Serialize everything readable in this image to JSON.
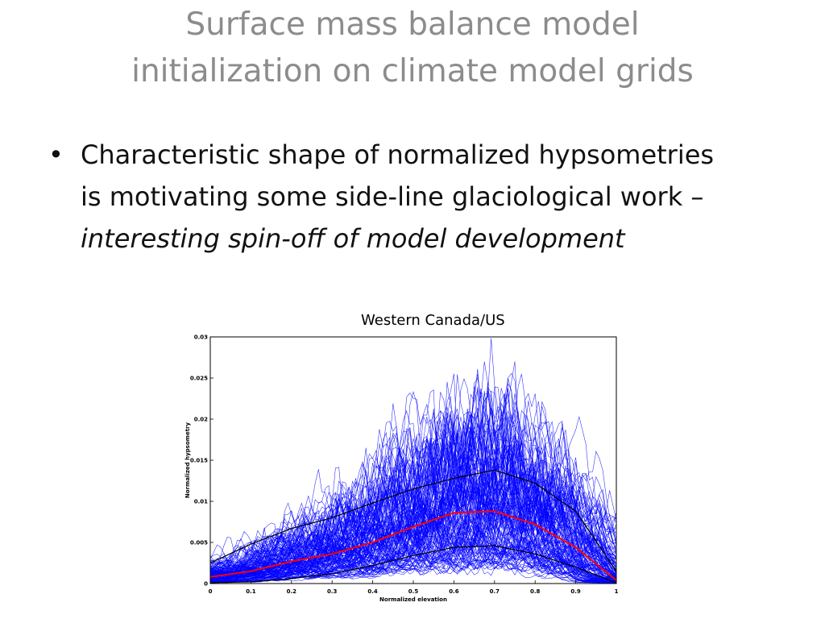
{
  "title": {
    "line1": "Surface mass balance model",
    "line2": "initialization on climate model grids"
  },
  "bullet": {
    "marker": "•",
    "text_plain": "Characteristic shape of normalized hypsometries is motivating some side-line glaciological work – ",
    "text_italic": "interesting spin-off of model development"
  },
  "chart_data": {
    "type": "line",
    "title": "Western Canada/US",
    "xlabel": "Normalized elevation",
    "ylabel": "Normalized hypsometry",
    "xlim": [
      0,
      1
    ],
    "ylim": [
      0,
      0.03
    ],
    "xticks": [
      0,
      0.1,
      0.2,
      0.3,
      0.4,
      0.5,
      0.6,
      0.7,
      0.8,
      0.9,
      1
    ],
    "xtick_labels": [
      "0",
      "0.1",
      "0.2",
      "0.3",
      "0.4",
      "0.5",
      "0.6",
      "0.7",
      "0.8",
      "0.9",
      "1"
    ],
    "yticks": [
      0,
      0.005,
      0.01,
      0.015,
      0.02,
      0.025,
      0.03
    ],
    "ytick_labels": [
      "0",
      "0.005",
      "0.01",
      "0.015",
      "0.02",
      "0.025",
      "0.03"
    ],
    "grid": false,
    "legend": "none",
    "x": [
      0,
      0.1,
      0.2,
      0.3,
      0.4,
      0.5,
      0.6,
      0.7,
      0.8,
      0.9,
      1
    ],
    "series": [
      {
        "values": [
          0.0008,
          0.0015,
          0.0027,
          0.0036,
          0.005,
          0.0069,
          0.0086,
          0.0088,
          0.0072,
          0.0044,
          0.0004
        ],
        "color": "#ff0000"
      },
      {
        "values": [
          0.0025,
          0.0048,
          0.0067,
          0.008,
          0.0098,
          0.0115,
          0.0128,
          0.0138,
          0.0122,
          0.0088,
          0.0015
        ],
        "color": "#000000"
      },
      {
        "values": [
          0.0001,
          0.0002,
          0.0006,
          0.0012,
          0.0022,
          0.0034,
          0.0044,
          0.0046,
          0.0036,
          0.002,
          0.0001
        ],
        "color": "#000000"
      }
    ],
    "ensemble": {
      "count": 150,
      "color": "#0000ff"
    }
  }
}
